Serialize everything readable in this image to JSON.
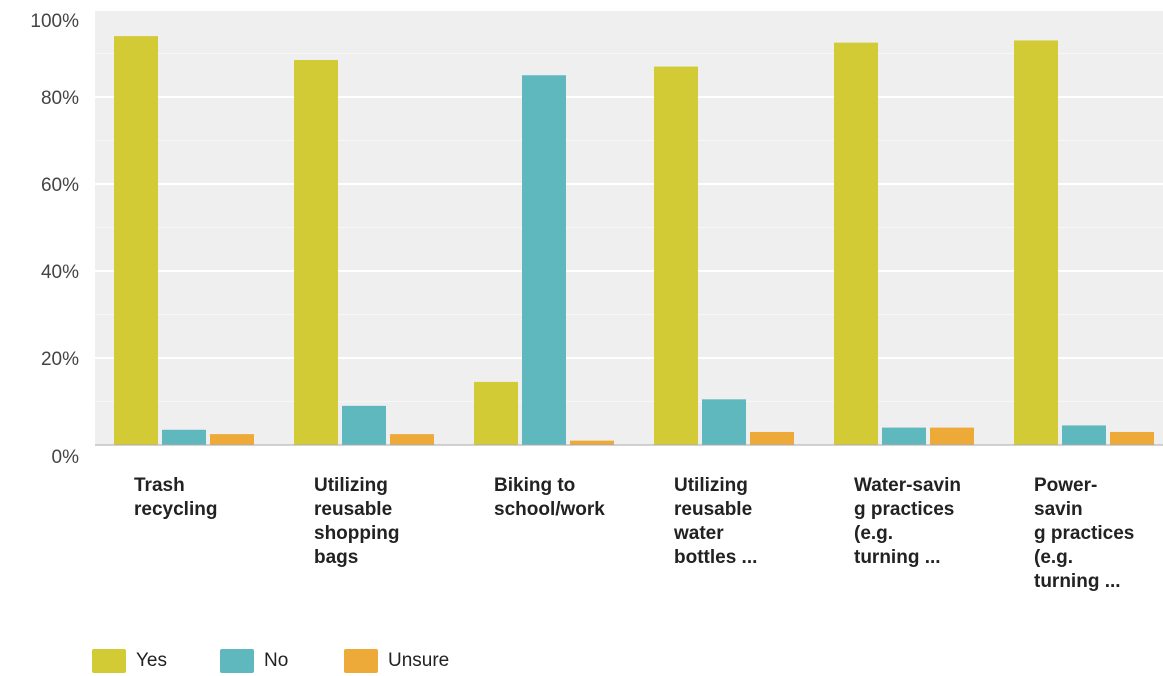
{
  "chart_data": {
    "type": "bar",
    "categories": [
      "Trash\nrecycling",
      "Utilizing\nreusable\nshopping\nbags",
      "Biking to\nschool/work",
      "Utilizing\nreusable\nwater\nbottles ...",
      "Water-savin\ng practices\n(e.g.\nturning ...",
      "Power-\nsavin\ng practices\n(e.g.\nturning ..."
    ],
    "series": [
      {
        "name": "Yes",
        "color": "#d2cb35",
        "values": [
          94,
          88.5,
          14.5,
          87,
          92.5,
          93
        ]
      },
      {
        "name": "No",
        "color": "#5fb8be",
        "values": [
          3.5,
          9,
          85,
          10.5,
          4,
          4.5
        ]
      },
      {
        "name": "Unsure",
        "color": "#eeaa38",
        "values": [
          2.5,
          2.5,
          1,
          3,
          4,
          3
        ]
      }
    ],
    "yticks": [
      "0%",
      "20%",
      "40%",
      "60%",
      "80%",
      "100%"
    ],
    "ylim": [
      0,
      100
    ],
    "grid": true,
    "legend_position": "bottom-left",
    "background_color": "#efefef"
  }
}
